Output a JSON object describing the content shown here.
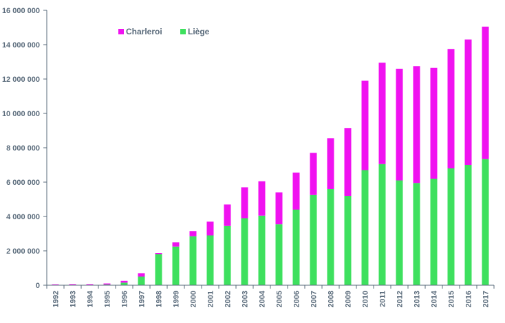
{
  "chart_data": {
    "type": "bar",
    "stacked": true,
    "categories": [
      "1992",
      "1993",
      "1994",
      "1995",
      "1996",
      "1997",
      "1998",
      "1999",
      "2000",
      "2001",
      "2002",
      "2003",
      "2004",
      "2005",
      "2006",
      "2007",
      "2008",
      "2009",
      "2010",
      "2011",
      "2012",
      "2013",
      "2014",
      "2015",
      "2016",
      "2017"
    ],
    "series": [
      {
        "name": "Liège",
        "color": "#3ee05e",
        "values": [
          20000,
          25000,
          20000,
          40000,
          150000,
          500000,
          1800000,
          2250000,
          2850000,
          2900000,
          3450000,
          3900000,
          4050000,
          3550000,
          4400000,
          5250000,
          5600000,
          5200000,
          6700000,
          7050000,
          6100000,
          5950000,
          6200000,
          6800000,
          7000000,
          7350000
        ]
      },
      {
        "name": "Charleroi",
        "color": "#f012f0",
        "values": [
          30000,
          40000,
          40000,
          60000,
          100000,
          200000,
          80000,
          250000,
          300000,
          800000,
          1250000,
          1800000,
          2000000,
          1850000,
          2150000,
          2450000,
          2950000,
          3950000,
          5200000,
          5900000,
          6500000,
          6800000,
          6450000,
          6950000,
          7300000,
          7700000
        ]
      }
    ],
    "ylim": [
      0,
      16000000
    ],
    "yticks": [
      0,
      2000000,
      4000000,
      6000000,
      8000000,
      10000000,
      12000000,
      14000000,
      16000000
    ],
    "ytick_labels": [
      "0",
      "2 000 000",
      "4 000 000",
      "6 000 000",
      "8 000 000",
      "10 000 000",
      "12 000 000",
      "14 000 000",
      "16 000 000"
    ],
    "title": "",
    "xlabel": "",
    "ylabel": "",
    "grid": false,
    "legend_position": "top-left",
    "legend_order": [
      "Charleroi",
      "Liège"
    ],
    "axis_color": "#5a6b7b"
  }
}
